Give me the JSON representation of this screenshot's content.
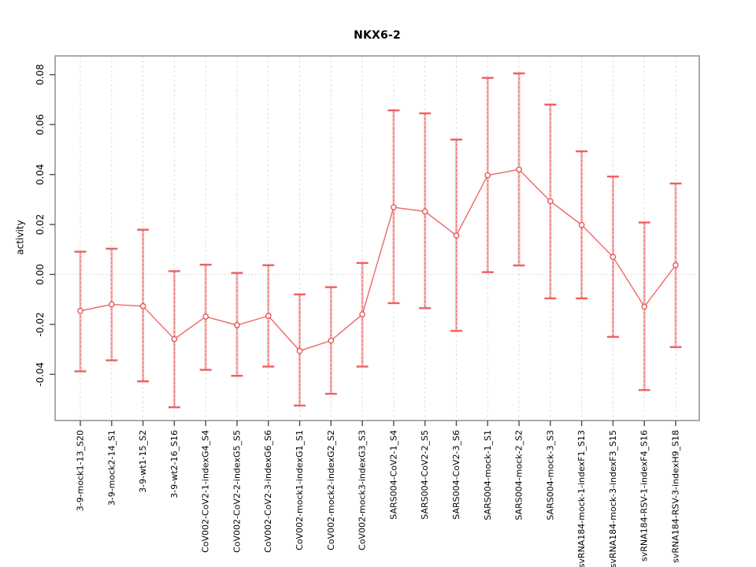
{
  "title": "NKX6-2",
  "chart_data": {
    "type": "line",
    "title": "NKX6-2",
    "xlabel": "",
    "ylabel": "activity",
    "ylim": [
      -0.0585,
      0.0875
    ],
    "yticks": [
      0.08,
      0.06,
      0.04,
      0.02,
      0.0,
      -0.02,
      -0.04
    ],
    "ytick_labels": [
      "0.08",
      "0.06",
      "0.04",
      "0.02",
      "0.00",
      "-0.02",
      "-0.04"
    ],
    "grid": "vertical dashed gridline at each category; dotted horizontal line at y=0",
    "legend": "none",
    "categories": [
      "3-9-mock1-13_S20",
      "3-9-mock2-14_S1",
      "3-9-wt1-15_S2",
      "3-9-wt2-16_S16",
      "CoV002-CoV2-1-indexG4_S4",
      "CoV002-CoV2-2-indexG5_S5",
      "CoV002-CoV2-3-indexG6_S6",
      "CoV002-mock1-indexG1_S1",
      "CoV002-mock2-indexG2_S2",
      "CoV002-mock3-indexG3_S3",
      "SARS004-CoV2-1_S4",
      "SARS004-CoV2-2_S5",
      "SARS004-CoV2-3_S6",
      "SARS004-mock-1_S1",
      "SARS004-mock-2_S2",
      "SARS004-mock-3_S3",
      "svRNA184-mock-1-indexF1_S13",
      "svRNA184-mock-3-indexF3_S15",
      "svRNA184-RSV-1-indexF4_S16",
      "svRNA184-RSV-3-indexH9_S18"
    ],
    "series": [
      {
        "name": "activity",
        "values": [
          -0.0146,
          -0.012,
          -0.0127,
          -0.0259,
          -0.0169,
          -0.0203,
          -0.0166,
          -0.0306,
          -0.0265,
          -0.016,
          0.0269,
          0.0252,
          0.0156,
          0.0397,
          0.042,
          0.0293,
          0.0198,
          0.007,
          -0.0129,
          0.0037
        ],
        "lower": [
          -0.0388,
          -0.0344,
          -0.0428,
          -0.0532,
          -0.0382,
          -0.0406,
          -0.0369,
          -0.0525,
          -0.0478,
          -0.0369,
          -0.0115,
          -0.0135,
          -0.0226,
          0.0009,
          0.0036,
          -0.0096,
          -0.0096,
          -0.025,
          -0.0463,
          -0.0291
        ],
        "upper": [
          0.0091,
          0.0103,
          0.0179,
          0.0013,
          0.0039,
          0.0006,
          0.0037,
          -0.008,
          -0.0051,
          0.0046,
          0.0657,
          0.0645,
          0.054,
          0.0787,
          0.0805,
          0.068,
          0.0493,
          0.0392,
          0.0208,
          0.0364
        ]
      }
    ]
  },
  "colors": {
    "background": "#ffffff",
    "panel_border": "#969696",
    "axis": "#4d4d4d",
    "tick_text": "#000000",
    "gridline": "#dedede",
    "zero_line": "#d8d8d8",
    "series_line": "#f16565",
    "point_stroke": "#e05252",
    "point_fill": "#ffffff",
    "errorbar_pale": "#f6aaaa",
    "errorbar_dash": "#e85c5c",
    "errorbar_cap": "#f05f5f"
  }
}
